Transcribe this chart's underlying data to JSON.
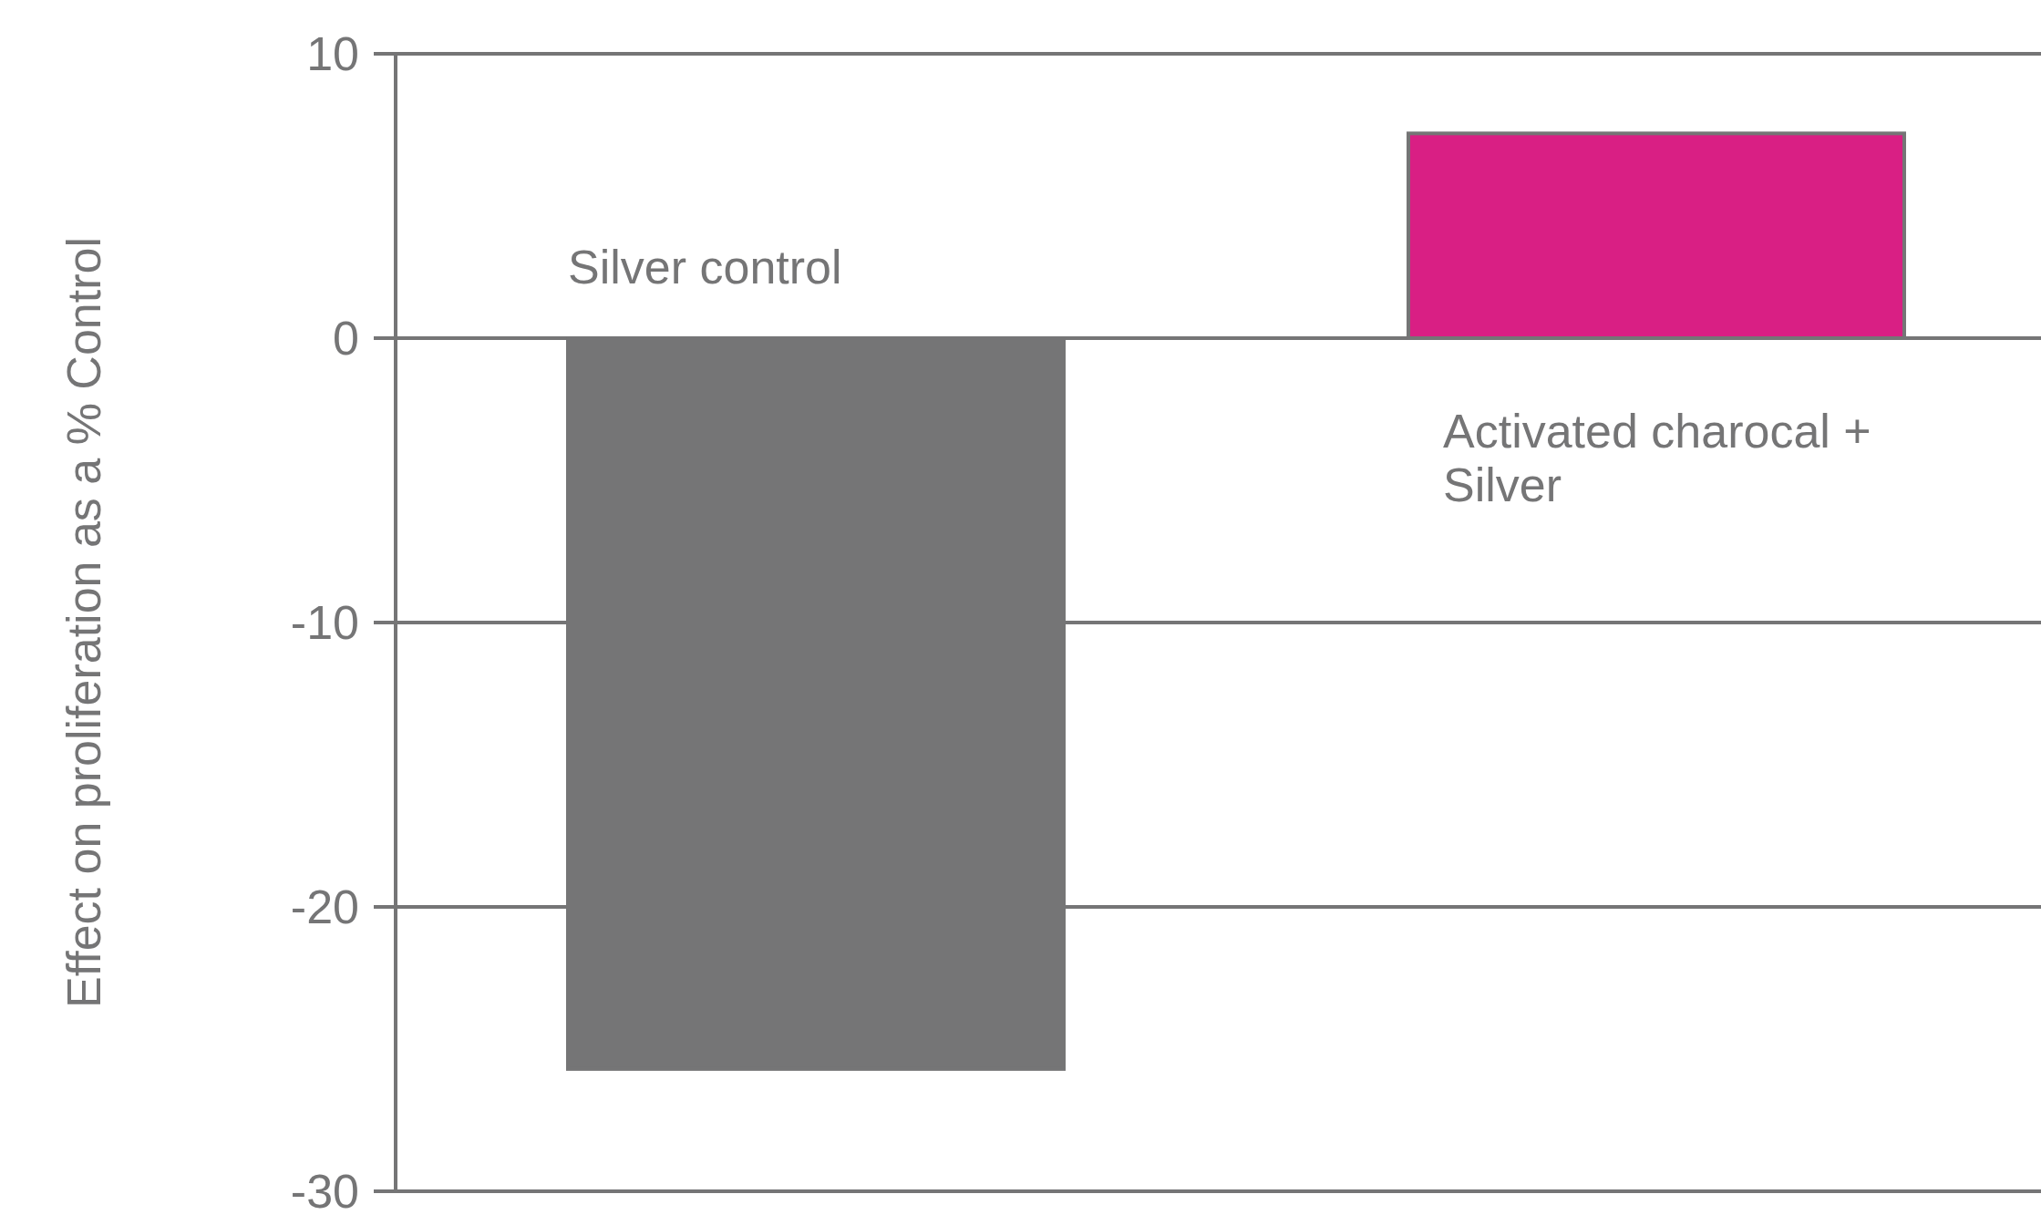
{
  "chart_data": {
    "type": "bar",
    "ylabel": "Effect on proliferation as a % Control",
    "categories": [
      "Silver control",
      "Activated charocal + Silver"
    ],
    "values": [
      -25.7,
      7.2
    ],
    "colors": [
      "#757576",
      "#d91f84"
    ],
    "ylim": [
      -30,
      10
    ],
    "yticks": [
      10,
      0,
      -10,
      -20,
      -30
    ],
    "grid": "y"
  }
}
